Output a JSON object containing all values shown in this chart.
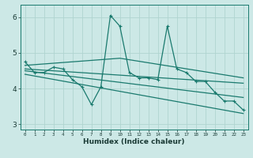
{
  "xlabel": "Humidex (Indice chaleur)",
  "bg_color": "#cce8e6",
  "grid_color": "#b0d4d0",
  "line_color": "#1a7a6e",
  "xlim": [
    -0.5,
    23.5
  ],
  "ylim": [
    2.85,
    6.35
  ],
  "xticks": [
    0,
    1,
    2,
    3,
    4,
    5,
    6,
    7,
    8,
    9,
    10,
    11,
    12,
    13,
    14,
    15,
    16,
    17,
    18,
    19,
    20,
    21,
    22,
    23
  ],
  "yticks": [
    3,
    4,
    5,
    6
  ],
  "series1_x": [
    0,
    1,
    2,
    3,
    4,
    5,
    6,
    7,
    8,
    9,
    10,
    11,
    12,
    13,
    14,
    15,
    16,
    17,
    18,
    19,
    20,
    21,
    22,
    23
  ],
  "series1_y": [
    4.75,
    4.45,
    4.45,
    4.6,
    4.55,
    4.25,
    4.05,
    3.55,
    4.05,
    6.05,
    5.75,
    4.45,
    4.3,
    4.3,
    4.25,
    5.75,
    4.55,
    4.45,
    4.2,
    4.2,
    3.9,
    3.65,
    3.65,
    3.4
  ],
  "series2_x": [
    0,
    10,
    23
  ],
  "series2_y": [
    4.65,
    4.85,
    4.3
  ],
  "series3_x": [
    0,
    23
  ],
  "series3_y": [
    4.55,
    4.15
  ],
  "series4_x": [
    0,
    23
  ],
  "series4_y": [
    4.5,
    3.75
  ],
  "series5_x": [
    0,
    23
  ],
  "series5_y": [
    4.4,
    3.3
  ]
}
